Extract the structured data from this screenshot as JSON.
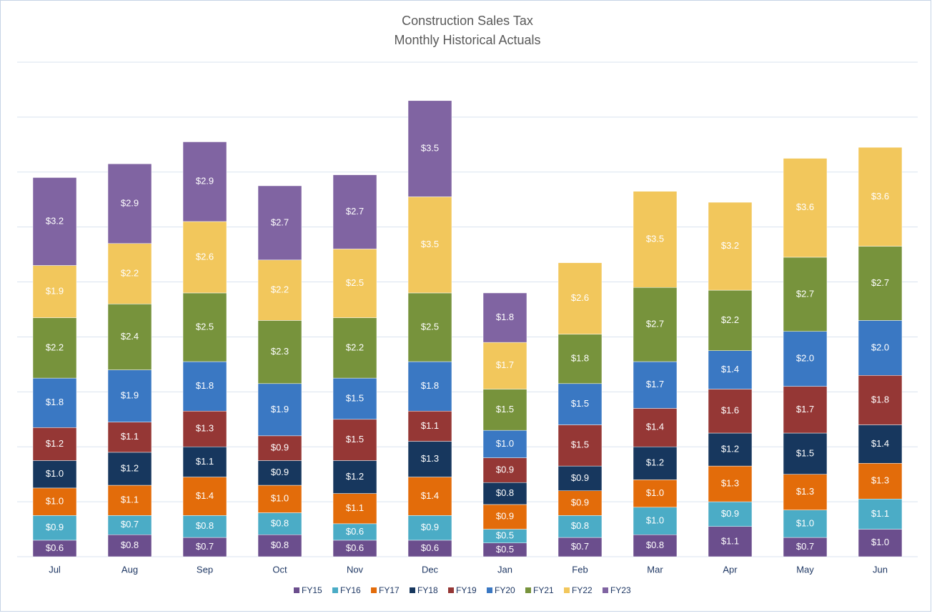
{
  "chart_data": {
    "type": "stacked_bar",
    "title": [
      "Construction Sales Tax",
      "Monthly Historical Actuals"
    ],
    "categories": [
      "Jul",
      "Aug",
      "Sep",
      "Oct",
      "Nov",
      "Dec",
      "Jan",
      "Feb",
      "Mar",
      "Apr",
      "May",
      "Jun"
    ],
    "ylim": [
      0,
      18
    ],
    "yticks": [
      0,
      2,
      4,
      6,
      8,
      10,
      12,
      14,
      16,
      18
    ],
    "grid": true,
    "legend": "bottom",
    "series": [
      {
        "name": "FY15",
        "color": "#6b4e8d",
        "values": [
          0.6,
          0.8,
          0.7,
          0.8,
          0.6,
          0.6,
          0.5,
          0.7,
          0.8,
          1.1,
          0.7,
          1.0
        ],
        "value_labels": [
          "$0.6",
          "$0.8",
          "$0.7",
          "$0.8",
          "$0.6",
          "$0.6",
          "$0.5",
          "$0.7",
          "$0.8",
          "$1.1",
          "$0.7",
          "$1.0"
        ]
      },
      {
        "name": "FY16",
        "color": "#4bacc6",
        "values": [
          0.9,
          0.7,
          0.8,
          0.8,
          0.6,
          0.9,
          0.5,
          0.8,
          1.0,
          0.9,
          1.0,
          1.1
        ],
        "value_labels": [
          "$0.9",
          "$0.7",
          "$0.8",
          "$0.8",
          "$0.6",
          "$0.9",
          "$0.5",
          "$0.8",
          "$1.0",
          "$0.9",
          "$1.0",
          "$1.1"
        ]
      },
      {
        "name": "FY17",
        "color": "#e36c0a",
        "values": [
          1.0,
          1.1,
          1.4,
          1.0,
          1.1,
          1.4,
          0.9,
          0.9,
          1.0,
          1.3,
          1.3,
          1.3
        ],
        "value_labels": [
          "$1.0",
          "$1.1",
          "$1.4",
          "$1.0",
          "$1.1",
          "$1.4",
          "$0.9",
          "$0.9",
          "$1.0",
          "$1.3",
          "$1.3",
          "$1.3"
        ]
      },
      {
        "name": "FY18",
        "color": "#17375e",
        "values": [
          1.0,
          1.2,
          1.1,
          0.9,
          1.2,
          1.3,
          0.8,
          0.9,
          1.2,
          1.2,
          1.5,
          1.4
        ],
        "value_labels": [
          "$1.0",
          "$1.2",
          "$1.1",
          "$0.9",
          "$1.2",
          "$1.3",
          "$0.8",
          "$0.9",
          "$1.2",
          "$1.2",
          "$1.5",
          "$1.4"
        ]
      },
      {
        "name": "FY19",
        "color": "#953735",
        "values": [
          1.2,
          1.1,
          1.3,
          0.9,
          1.5,
          1.1,
          0.9,
          1.5,
          1.4,
          1.6,
          1.7,
          1.8
        ],
        "value_labels": [
          "$1.2",
          "$1.1",
          "$1.3",
          "$0.9",
          "$1.5",
          "$1.1",
          "$0.9",
          "$1.5",
          "$1.4",
          "$1.6",
          "$1.7",
          "$1.8"
        ]
      },
      {
        "name": "FY20",
        "color": "#3a78c3",
        "values": [
          1.8,
          1.9,
          1.8,
          1.9,
          1.5,
          1.8,
          1.0,
          1.5,
          1.7,
          1.4,
          2.0,
          2.0
        ],
        "value_labels": [
          "$1.8",
          "$1.9",
          "$1.8",
          "$1.9",
          "$1.5",
          "$1.8",
          "$1.0",
          "$1.5",
          "$1.7",
          "$1.4",
          "$2.0",
          "$2.0"
        ]
      },
      {
        "name": "FY21",
        "color": "#77933c",
        "values": [
          2.2,
          2.4,
          2.5,
          2.3,
          2.2,
          2.5,
          1.5,
          1.8,
          2.7,
          2.2,
          2.7,
          2.7
        ],
        "value_labels": [
          "$2.2",
          "$2.4",
          "$2.5",
          "$2.3",
          "$2.2",
          "$2.5",
          "$1.5",
          "$1.8",
          "$2.7",
          "$2.2",
          "$2.7",
          "$2.7"
        ]
      },
      {
        "name": "FY22",
        "color": "#f2c75c",
        "values": [
          1.9,
          2.2,
          2.6,
          2.2,
          2.5,
          3.5,
          1.7,
          2.6,
          3.5,
          3.2,
          3.6,
          3.6
        ],
        "value_labels": [
          "$1.9",
          "$2.2",
          "$2.6",
          "$2.2",
          "$2.5",
          "$3.5",
          "$1.7",
          "$2.6",
          "$3.5",
          "$3.2",
          "$3.6",
          "$3.6"
        ]
      },
      {
        "name": "FY23",
        "color": "#8064a2",
        "values": [
          3.2,
          2.9,
          2.9,
          2.7,
          2.7,
          3.5,
          1.8,
          null,
          null,
          null,
          null,
          null
        ],
        "value_labels": [
          "$3.2",
          "$2.9",
          "$2.9",
          "$2.7",
          "$2.7",
          "$3.5",
          "$1.8",
          null,
          null,
          null,
          null,
          null
        ]
      }
    ]
  }
}
